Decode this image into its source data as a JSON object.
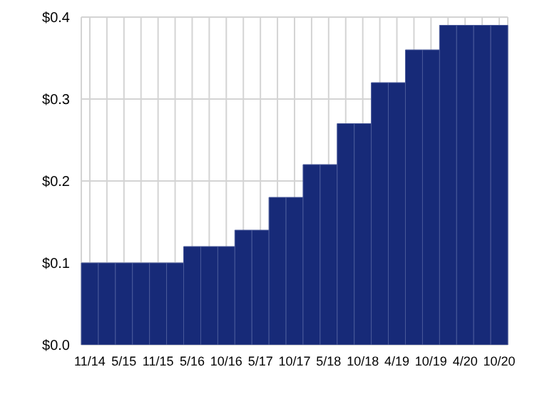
{
  "chart_data": {
    "type": "bar",
    "categories": [
      "11/14",
      null,
      "5/15",
      null,
      "11/15",
      null,
      "5/16",
      null,
      "10/16",
      null,
      "5/17",
      null,
      "10/17",
      null,
      "5/18",
      null,
      "10/18",
      null,
      "4/19",
      null,
      "10/19",
      null,
      "4/20",
      null,
      "10/20"
    ],
    "values": [
      0.1,
      0.1,
      0.1,
      0.1,
      0.1,
      0.1,
      0.12,
      0.12,
      0.12,
      0.14,
      0.14,
      0.18,
      0.18,
      0.22,
      0.22,
      0.27,
      0.27,
      0.32,
      0.32,
      0.36,
      0.36,
      0.39,
      0.39,
      0.39,
      0.39
    ],
    "color": "#172a78",
    "ylim": [
      0,
      0.4
    ],
    "yticks": [
      {
        "value": 0,
        "label": "$0.0"
      },
      {
        "value": 0.1,
        "label": "$0.1"
      },
      {
        "value": 0.2,
        "label": "$0.2"
      },
      {
        "value": 0.3,
        "label": "$0.3"
      },
      {
        "value": 0.4,
        "label": "$0.4"
      }
    ],
    "grid": true
  }
}
